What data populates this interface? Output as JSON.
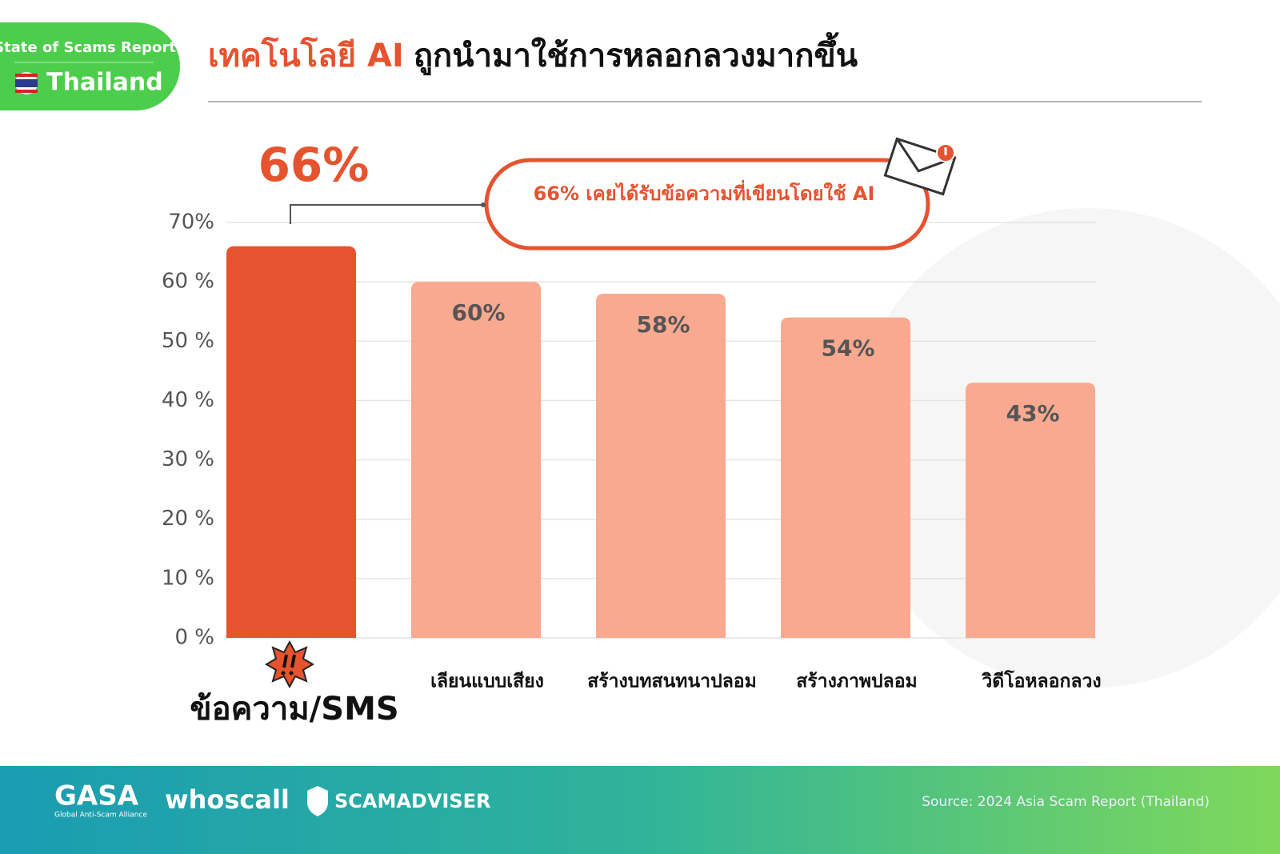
{
  "header": {
    "badge_title": "State of Scams Report",
    "badge_country": "Thailand",
    "title_highlight": "เทคโนโลยี AI",
    "title_rest": "ถูกนำมาใช้การหลอกลวงมากขึ้น"
  },
  "chart_data": {
    "type": "bar",
    "categories": [
      "ข้อความ/SMS",
      "เลียนแบบเสียง",
      "สร้างบทสนทนาปลอม",
      "สร้างภาพปลอม",
      "วิดีโอหลอกลวง"
    ],
    "values": [
      66,
      60,
      58,
      54,
      43
    ],
    "value_labels": [
      "66%",
      "60%",
      "58%",
      "54%",
      "43%"
    ],
    "colors": [
      "#e5532f",
      "#f9a98f",
      "#f9a98f",
      "#f9a98f",
      "#f9a98f"
    ],
    "ylim": [
      0,
      70
    ],
    "yticks": [
      {
        "value": 0,
        "label": "0 %"
      },
      {
        "value": 10,
        "label": "10 %"
      },
      {
        "value": 20,
        "label": "20 %"
      },
      {
        "value": 30,
        "label": "30 %"
      },
      {
        "value": 40,
        "label": "40 %"
      },
      {
        "value": 50,
        "label": "50 %"
      },
      {
        "value": 60,
        "label": "60 %"
      },
      {
        "value": 70,
        "label": "70%"
      }
    ],
    "grid": true,
    "annotation": "66%  เคยได้รับข้อความที่เขียนโดยใช้ AI"
  },
  "footer": {
    "logo_gasa": "GASA",
    "gasa_tagline": "Global Anti-Scam Alliance",
    "logo_whoscall": "whoscall",
    "logo_scamadviser": "SCAMADVISER",
    "source": "Source: 2024 Asia Scam Report (Thailand)"
  }
}
